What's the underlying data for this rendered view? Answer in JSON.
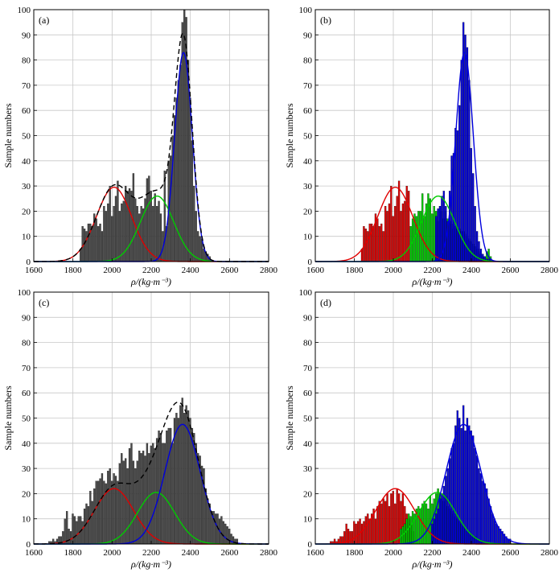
{
  "figure": {
    "panels": [
      "(a)",
      "(b)",
      "(c)",
      "(d)"
    ],
    "ylabel": "Sample numbers",
    "xlabel": "ρ/(kg·m⁻³)"
  },
  "colors": {
    "bar_gray": "#4a4a4a",
    "red": "#e00000",
    "green": "#00cc00",
    "blue": "#0000dd",
    "sum_curve": "#000000"
  },
  "chart_data": [
    {
      "type": "bar",
      "label": "(a)",
      "xlabel": "ρ/(kg·m⁻³)",
      "ylabel": "Sample numbers",
      "xlim": [
        1600,
        2800
      ],
      "ylim": [
        0,
        100
      ],
      "xticks": [
        1600,
        1800,
        2000,
        2200,
        2400,
        2600,
        2800
      ],
      "yticks": [
        0,
        10,
        20,
        30,
        40,
        50,
        60,
        70,
        80,
        90,
        100
      ],
      "grid": true,
      "bin_width": 10,
      "histogram_color": "gray",
      "x": [
        1840,
        1850,
        1860,
        1870,
        1880,
        1890,
        1900,
        1910,
        1920,
        1930,
        1940,
        1950,
        1960,
        1970,
        1980,
        1990,
        2000,
        2010,
        2020,
        2030,
        2040,
        2050,
        2060,
        2070,
        2080,
        2090,
        2100,
        2110,
        2120,
        2130,
        2140,
        2150,
        2160,
        2170,
        2180,
        2190,
        2200,
        2210,
        2220,
        2230,
        2240,
        2250,
        2260,
        2270,
        2280,
        2290,
        2300,
        2310,
        2320,
        2330,
        2340,
        2350,
        2360,
        2370,
        2380,
        2390,
        2400,
        2410,
        2420,
        2430,
        2440,
        2450,
        2460,
        2470,
        2480,
        2490,
        2500
      ],
      "values": [
        5,
        14,
        13,
        12,
        15,
        15,
        14,
        19,
        17,
        14,
        15,
        12,
        22,
        20,
        23,
        30,
        18,
        22,
        26,
        32,
        20,
        23,
        24,
        30,
        28,
        29,
        28,
        35,
        25,
        22,
        19,
        22,
        21,
        25,
        33,
        34,
        28,
        22,
        27,
        22,
        24,
        19,
        12,
        36,
        14,
        40,
        42,
        50,
        58,
        65,
        72,
        78,
        95,
        100,
        97,
        80,
        65,
        48,
        30,
        20,
        12,
        10,
        9,
        5,
        4,
        3,
        2
      ],
      "series": [
        {
          "name": "",
          "type": "gaussian",
          "color": "red",
          "mean": 2010,
          "sigma": 90,
          "peak": 29.5
        },
        {
          "name": "",
          "type": "gaussian",
          "color": "green",
          "mean": 2230,
          "sigma": 85,
          "peak": 26
        },
        {
          "name": "",
          "type": "gaussian",
          "color": "blue",
          "mean": 2365,
          "sigma": 45,
          "peak": 83
        },
        {
          "name": "",
          "type": "sum",
          "color": "black",
          "dashed": true
        }
      ]
    },
    {
      "type": "bar",
      "label": "(b)",
      "xlabel": "ρ/(kg·m⁻³)",
      "ylabel": "Sample numbers",
      "xlim": [
        1600,
        2800
      ],
      "ylim": [
        0,
        100
      ],
      "xticks": [
        1600,
        1800,
        2000,
        2200,
        2400,
        2600,
        2800
      ],
      "yticks": [
        0,
        10,
        20,
        30,
        40,
        50,
        60,
        70,
        80,
        90,
        100
      ],
      "grid": true,
      "bin_width": 10,
      "histogram_groups": [
        {
          "color": "red",
          "x": [
            1840,
            1850,
            1860,
            1870,
            1880,
            1890,
            1900,
            1910,
            1920,
            1930,
            1940,
            1950,
            1960,
            1970,
            1980,
            1990,
            2000,
            2010,
            2020,
            2030,
            2040,
            2050,
            2060,
            2070,
            2080
          ],
          "values": [
            5,
            14,
            13,
            12,
            15,
            15,
            14,
            19,
            17,
            14,
            15,
            12,
            22,
            20,
            23,
            30,
            18,
            22,
            26,
            32,
            20,
            23,
            24,
            30,
            28
          ]
        },
        {
          "color": "green",
          "x": [
            2090,
            2100,
            2110,
            2120,
            2130,
            2140,
            2150,
            2160,
            2170,
            2180,
            2190,
            2200,
            2210,
            2220,
            2230,
            2240,
            2250,
            2260,
            2270,
            2280,
            2290,
            2300,
            2310,
            2320,
            2330,
            2340,
            2350,
            2360,
            2370,
            2380,
            2390,
            2400,
            2410,
            2420,
            2430,
            2440,
            2450,
            2460,
            2470,
            2480,
            2490,
            2500
          ],
          "values": [
            14,
            17,
            19,
            18,
            20,
            20,
            27,
            18,
            23,
            27,
            25,
            19,
            22,
            20,
            16,
            22,
            20,
            17,
            20,
            17,
            16,
            15,
            13,
            14,
            13,
            13,
            12,
            12,
            11,
            10,
            9,
            8,
            7,
            6,
            5,
            4,
            3,
            2,
            2,
            4,
            5,
            2
          ]
        },
        {
          "color": "blue",
          "x": [
            2220,
            2230,
            2240,
            2250,
            2260,
            2270,
            2280,
            2290,
            2300,
            2310,
            2320,
            2330,
            2340,
            2350,
            2360,
            2370,
            2380,
            2390,
            2400,
            2410,
            2420,
            2430,
            2440,
            2450,
            2460,
            2470,
            2480,
            2490,
            2500
          ],
          "values": [
            18,
            21,
            22,
            26,
            28,
            22,
            16,
            28,
            42,
            43,
            53,
            52,
            62,
            80,
            95,
            90,
            85,
            72,
            45,
            35,
            22,
            12,
            8,
            5,
            3,
            2,
            1,
            1,
            1
          ]
        }
      ],
      "series": [
        {
          "name": "",
          "type": "gaussian",
          "color": "red",
          "mean": 2010,
          "sigma": 90,
          "peak": 29.5
        },
        {
          "name": "",
          "type": "gaussian",
          "color": "green",
          "mean": 2230,
          "sigma": 85,
          "peak": 26
        },
        {
          "name": "",
          "type": "gaussian",
          "color": "blue",
          "mean": 2365,
          "sigma": 45,
          "peak": 83
        }
      ]
    },
    {
      "type": "bar",
      "label": "(c)",
      "xlabel": "ρ/(kg·m⁻³)",
      "ylabel": "Sample numbers",
      "xlim": [
        1600,
        2800
      ],
      "ylim": [
        0,
        100
      ],
      "xticks": [
        1600,
        1800,
        2000,
        2200,
        2400,
        2600,
        2800
      ],
      "yticks": [
        0,
        10,
        20,
        30,
        40,
        50,
        60,
        70,
        80,
        90,
        100
      ],
      "grid": true,
      "bin_width": 10,
      "histogram_color": "gray",
      "x": [
        1680,
        1690,
        1700,
        1710,
        1720,
        1730,
        1740,
        1750,
        1760,
        1770,
        1780,
        1790,
        1800,
        1810,
        1820,
        1830,
        1840,
        1850,
        1860,
        1870,
        1880,
        1890,
        1900,
        1910,
        1920,
        1930,
        1940,
        1950,
        1960,
        1970,
        1980,
        1990,
        2000,
        2010,
        2020,
        2030,
        2040,
        2050,
        2060,
        2070,
        2080,
        2090,
        2100,
        2110,
        2120,
        2130,
        2140,
        2150,
        2160,
        2170,
        2180,
        2190,
        2200,
        2210,
        2220,
        2230,
        2240,
        2250,
        2260,
        2270,
        2280,
        2290,
        2300,
        2310,
        2320,
        2330,
        2340,
        2350,
        2360,
        2370,
        2380,
        2390,
        2400,
        2410,
        2420,
        2430,
        2440,
        2450,
        2460,
        2470,
        2480,
        2490,
        2500,
        2510,
        2520,
        2530,
        2540,
        2550,
        2560,
        2570,
        2580,
        2590,
        2600,
        2610,
        2620,
        2630,
        2640
      ],
      "values": [
        1,
        1,
        2,
        1,
        2,
        3,
        3,
        5,
        10,
        13,
        6,
        5,
        12,
        11,
        9,
        11,
        11,
        9,
        14,
        16,
        15,
        21,
        17,
        22,
        25,
        25,
        26,
        28,
        25,
        24,
        29,
        30,
        25,
        28,
        27,
        25,
        32,
        36,
        33,
        34,
        30,
        38,
        40,
        33,
        30,
        33,
        37,
        36,
        37,
        35,
        40,
        36,
        39,
        40,
        38,
        42,
        45,
        44,
        40,
        40,
        45,
        46,
        46,
        40,
        50,
        52,
        50,
        55,
        58,
        52,
        55,
        53,
        50,
        46,
        44,
        40,
        36,
        35,
        31,
        30,
        22,
        18,
        16,
        13,
        13,
        12,
        12,
        10,
        11,
        9,
        8,
        7,
        6,
        4,
        3,
        2,
        2
      ],
      "series": [
        {
          "name": "",
          "type": "gaussian",
          "color": "red",
          "mean": 2010,
          "sigma": 100,
          "peak": 22
        },
        {
          "name": "",
          "type": "gaussian",
          "color": "green",
          "mean": 2225,
          "sigma": 95,
          "peak": 20.5
        },
        {
          "name": "",
          "type": "gaussian",
          "color": "blue",
          "mean": 2360,
          "sigma": 90,
          "peak": 47.5
        },
        {
          "name": "",
          "type": "sum",
          "color": "black",
          "dashed": true
        }
      ]
    },
    {
      "type": "bar",
      "label": "(d)",
      "xlabel": "ρ/(kg·m⁻³)",
      "ylabel": "Sample numbers",
      "xlim": [
        1600,
        2800
      ],
      "ylim": [
        0,
        100
      ],
      "xticks": [
        1600,
        1800,
        2000,
        2200,
        2400,
        2600,
        2800
      ],
      "yticks": [
        0,
        10,
        20,
        30,
        40,
        50,
        60,
        70,
        80,
        90,
        100
      ],
      "grid": true,
      "bin_width": 10,
      "histogram_groups": [
        {
          "color": "red",
          "x": [
            1680,
            1690,
            1700,
            1710,
            1720,
            1730,
            1740,
            1750,
            1760,
            1770,
            1780,
            1790,
            1800,
            1810,
            1820,
            1830,
            1840,
            1850,
            1860,
            1870,
            1880,
            1890,
            1900,
            1910,
            1920,
            1930,
            1940,
            1950,
            1960,
            1970,
            1980,
            1990,
            2000,
            2010,
            2020,
            2030,
            2040,
            2050,
            2060,
            2070,
            2080,
            2090,
            2100
          ],
          "values": [
            1,
            1,
            2,
            1,
            2,
            3,
            3,
            5,
            8,
            6,
            5,
            5,
            9,
            8,
            9,
            10,
            8,
            9,
            11,
            12,
            10,
            12,
            14,
            10,
            15,
            17,
            16,
            18,
            17,
            20,
            15,
            20,
            21,
            16,
            22,
            20,
            17,
            20,
            15,
            12,
            10,
            8,
            5
          ]
        },
        {
          "color": "green",
          "x": [
            2040,
            2050,
            2060,
            2070,
            2080,
            2090,
            2100,
            2110,
            2120,
            2130,
            2140,
            2150,
            2160,
            2170,
            2180,
            2190,
            2200,
            2210,
            2220,
            2230,
            2240,
            2250,
            2260,
            2270,
            2280,
            2290,
            2300,
            2310,
            2320,
            2330,
            2340,
            2350,
            2360,
            2370,
            2380,
            2390,
            2400,
            2410,
            2420,
            2430,
            2440,
            2450,
            2460
          ],
          "values": [
            6,
            7,
            8,
            10,
            12,
            11,
            13,
            12,
            14,
            15,
            14,
            16,
            17,
            16,
            14,
            19,
            16,
            18,
            20,
            22,
            20,
            18,
            17,
            19,
            15,
            14,
            13,
            12,
            11,
            10,
            9,
            8,
            7,
            6,
            5,
            5,
            4,
            3,
            3,
            2,
            2,
            1,
            1
          ]
        },
        {
          "color": "blue",
          "x": [
            2200,
            2210,
            2220,
            2230,
            2240,
            2250,
            2260,
            2270,
            2280,
            2290,
            2300,
            2310,
            2320,
            2330,
            2340,
            2350,
            2360,
            2370,
            2380,
            2390,
            2400,
            2410,
            2420,
            2430,
            2440,
            2450,
            2460,
            2470,
            2480,
            2490,
            2500,
            2510,
            2520,
            2530,
            2540,
            2550,
            2560,
            2570,
            2580,
            2590,
            2600
          ],
          "values": [
            8,
            10,
            12,
            14,
            18,
            20,
            23,
            27,
            30,
            34,
            38,
            40,
            47,
            53,
            50,
            46,
            55,
            45,
            50,
            47,
            45,
            43,
            38,
            35,
            30,
            28,
            25,
            24,
            22,
            18,
            15,
            12,
            10,
            8,
            7,
            6,
            5,
            4,
            3,
            2,
            2
          ]
        }
      ],
      "series": [
        {
          "name": "",
          "type": "gaussian",
          "color": "red",
          "mean": 2010,
          "sigma": 100,
          "peak": 22
        },
        {
          "name": "",
          "type": "gaussian",
          "color": "green",
          "mean": 2225,
          "sigma": 95,
          "peak": 20.5
        },
        {
          "name": "",
          "type": "gaussian",
          "color": "blue",
          "mean": 2360,
          "sigma": 90,
          "peak": 47.5
        }
      ]
    }
  ]
}
